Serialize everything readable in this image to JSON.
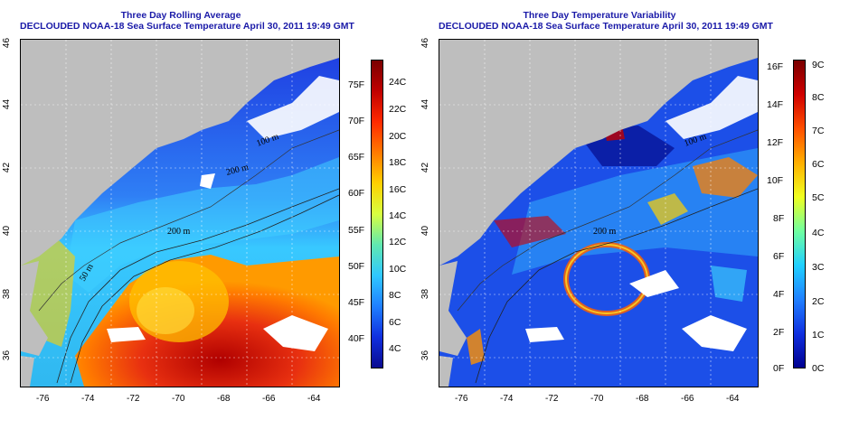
{
  "left_panel": {
    "title": "Three Day Rolling Average",
    "subtitle": "DECLOUDED NOAA-18 Sea Surface Temperature April 30, 2011 19:49 GMT",
    "contour_labels": [
      "100 m",
      "200 m",
      "200 m",
      "50 m"
    ],
    "colorbar": {
      "fahrenheit": [
        "75F",
        "70F",
        "65F",
        "60F",
        "55F",
        "50F",
        "45F",
        "40F"
      ],
      "celsius": [
        "24C",
        "22C",
        "20C",
        "18C",
        "16C",
        "14C",
        "12C",
        "10C",
        "8C",
        "6C",
        "4C"
      ],
      "colors": [
        "#7a0000",
        "#c00000",
        "#ff2a00",
        "#ff7a00",
        "#ffd000",
        "#d8ff40",
        "#60e8b0",
        "#30c8ff",
        "#2080ff",
        "#1030e0",
        "#0a0a90"
      ]
    }
  },
  "right_panel": {
    "title": "Three Day Temperature Variability",
    "subtitle": "DECLOUDED NOAA-18 Sea Surface Temperature April 30, 2011 19:49 GMT",
    "contour_labels": [
      "100 m",
      "200 m"
    ],
    "colorbar": {
      "fahrenheit": [
        "16F",
        "14F",
        "12F",
        "10F",
        "8F",
        "6F",
        "4F",
        "2F",
        "0F"
      ],
      "celsius": [
        "9C",
        "8C",
        "7C",
        "6C",
        "5C",
        "4C",
        "3C",
        "2C",
        "1C",
        "0C"
      ],
      "colors": [
        "#7a0000",
        "#d00000",
        "#ff5000",
        "#ffb000",
        "#f0ff20",
        "#70ffa0",
        "#20d0ff",
        "#2080ff",
        "#1030e0",
        "#000090"
      ]
    }
  },
  "axes": {
    "longitudes": [
      "-76",
      "-74",
      "-72",
      "-70",
      "-68",
      "-66",
      "-64"
    ],
    "latitudes": [
      "46",
      "44",
      "42",
      "40",
      "38",
      "36"
    ]
  }
}
